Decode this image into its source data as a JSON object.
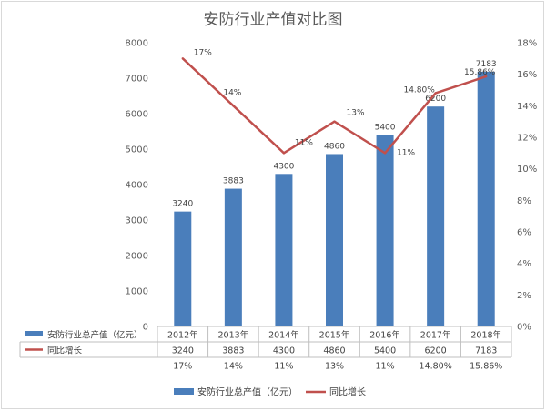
{
  "chart_data": {
    "type": "bar",
    "title": "安防行业产值对比图",
    "categories": [
      "2012年",
      "2013年",
      "2014年",
      "2015年",
      "2016年",
      "2017年",
      "2018年"
    ],
    "series": [
      {
        "name": "安防行业总产值（亿元）",
        "type": "bar",
        "axis": "left",
        "values": [
          3240,
          3883,
          4300,
          4860,
          5400,
          6200,
          7183
        ],
        "labels": [
          "3240",
          "3883",
          "4300",
          "4860",
          "5400",
          "6200",
          "7183"
        ],
        "color": "#4a7ebb"
      },
      {
        "name": "同比增长",
        "type": "line",
        "axis": "right",
        "values": [
          17,
          14,
          11,
          13,
          11,
          14.8,
          15.86
        ],
        "labels": [
          "17%",
          "14%",
          "11%",
          "13%",
          "11%",
          "14.80%",
          "15.86%"
        ],
        "color": "#c0504d"
      }
    ],
    "y_left": {
      "min": 0,
      "max": 8000,
      "step": 1000,
      "ticks": [
        "0",
        "1000",
        "2000",
        "3000",
        "4000",
        "5000",
        "6000",
        "7000",
        "8000"
      ]
    },
    "y_right": {
      "min": 0,
      "max": 18,
      "step": 2,
      "ticks": [
        "0%",
        "2%",
        "4%",
        "6%",
        "8%",
        "10%",
        "12%",
        "14%",
        "16%",
        "18%"
      ]
    },
    "data_table": {
      "rows": [
        {
          "name": "安防行业总产值（亿元）",
          "cells": [
            "3240",
            "3883",
            "4300",
            "4860",
            "5400",
            "6200",
            "7183"
          ]
        },
        {
          "name": "同比增长",
          "cells": [
            "17%",
            "14%",
            "11%",
            "13%",
            "11%",
            "14.80%",
            "15.86%"
          ]
        }
      ]
    },
    "legend": {
      "position": "bottom",
      "entries": [
        "安防行业总产值（亿元）",
        "同比增长"
      ]
    },
    "grid": false
  }
}
